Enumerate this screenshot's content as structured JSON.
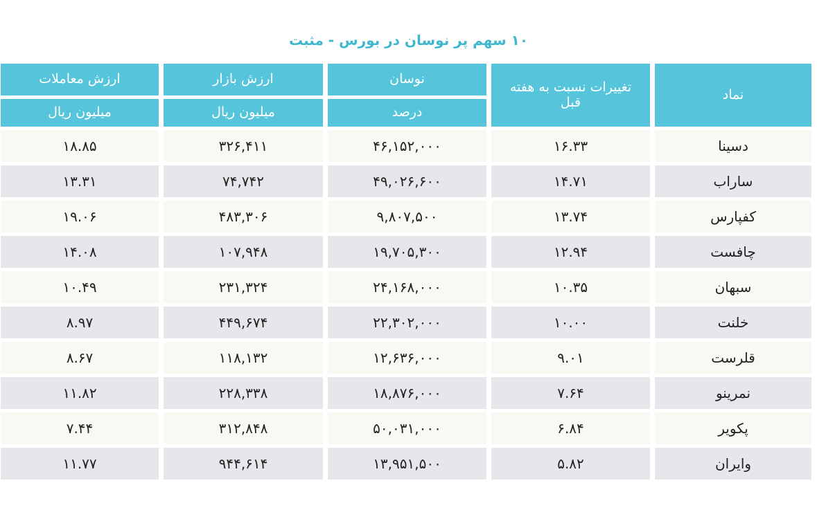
{
  "title": "۱۰ سهم پر نوسان در بورس - مثبت",
  "headers": {
    "symbol": "نماد",
    "volatility": "نوسان",
    "volatility_unit": "درصد",
    "market_value": "ارزش بازار",
    "market_value_unit": "میلیون ریال",
    "trade_value": "ارزش معاملات",
    "trade_value_unit": "میلیون ریال",
    "weekly_change": "تغییرات نسبت به هفته قبل"
  },
  "rows": [
    {
      "symbol": "دسینا",
      "volatility": "۱۶.۳۳",
      "market_value": "۴۶,۱۵۲,۰۰۰",
      "trade_value": "۳۲۶,۴۱۱",
      "weekly_change": "۱۸.۸۵"
    },
    {
      "symbol": "ساراب",
      "volatility": "۱۴.۷۱",
      "market_value": "۴۹,۰۲۶,۶۰۰",
      "trade_value": "۷۴,۷۴۲",
      "weekly_change": "۱۳.۳۱"
    },
    {
      "symbol": "کفپارس",
      "volatility": "۱۳.۷۴",
      "market_value": "۹,۸۰۷,۵۰۰",
      "trade_value": "۴۸۳,۳۰۶",
      "weekly_change": "۱۹.۰۶"
    },
    {
      "symbol": "چافست",
      "volatility": "۱۲.۹۴",
      "market_value": "۱۹,۷۰۵,۳۰۰",
      "trade_value": "۱۰۷,۹۴۸",
      "weekly_change": "۱۴.۰۸"
    },
    {
      "symbol": "سبهان",
      "volatility": "۱۰.۳۵",
      "market_value": "۲۴,۱۶۸,۰۰۰",
      "trade_value": "۲۳۱,۳۲۴",
      "weekly_change": "۱۰.۴۹"
    },
    {
      "symbol": "خلنت",
      "volatility": "۱۰.۰۰",
      "market_value": "۲۲,۳۰۲,۰۰۰",
      "trade_value": "۴۴۹,۶۷۴",
      "weekly_change": "۸.۹۷"
    },
    {
      "symbol": "قلرست",
      "volatility": "۹.۰۱",
      "market_value": "۱۲,۶۳۶,۰۰۰",
      "trade_value": "۱۱۸,۱۳۲",
      "weekly_change": "۸.۶۷"
    },
    {
      "symbol": "نمرینو",
      "volatility": "۷.۶۴",
      "market_value": "۱۸,۸۷۶,۰۰۰",
      "trade_value": "۲۲۸,۳۳۸",
      "weekly_change": "۱۱.۸۲"
    },
    {
      "symbol": "پکویر",
      "volatility": "۶.۸۴",
      "market_value": "۵۰,۰۳۱,۰۰۰",
      "trade_value": "۳۱۲,۸۴۸",
      "weekly_change": "۷.۴۴"
    },
    {
      "symbol": "وایران",
      "volatility": "۵.۸۲",
      "market_value": "۱۳,۹۵۱,۵۰۰",
      "trade_value": "۹۴۴,۶۱۴",
      "weekly_change": "۱۱.۷۷"
    }
  ],
  "colors": {
    "header": "#56c4da",
    "title": "#3fb7cf",
    "row_light": "#f9f8f3",
    "row_dark": "#e6e7ea"
  }
}
